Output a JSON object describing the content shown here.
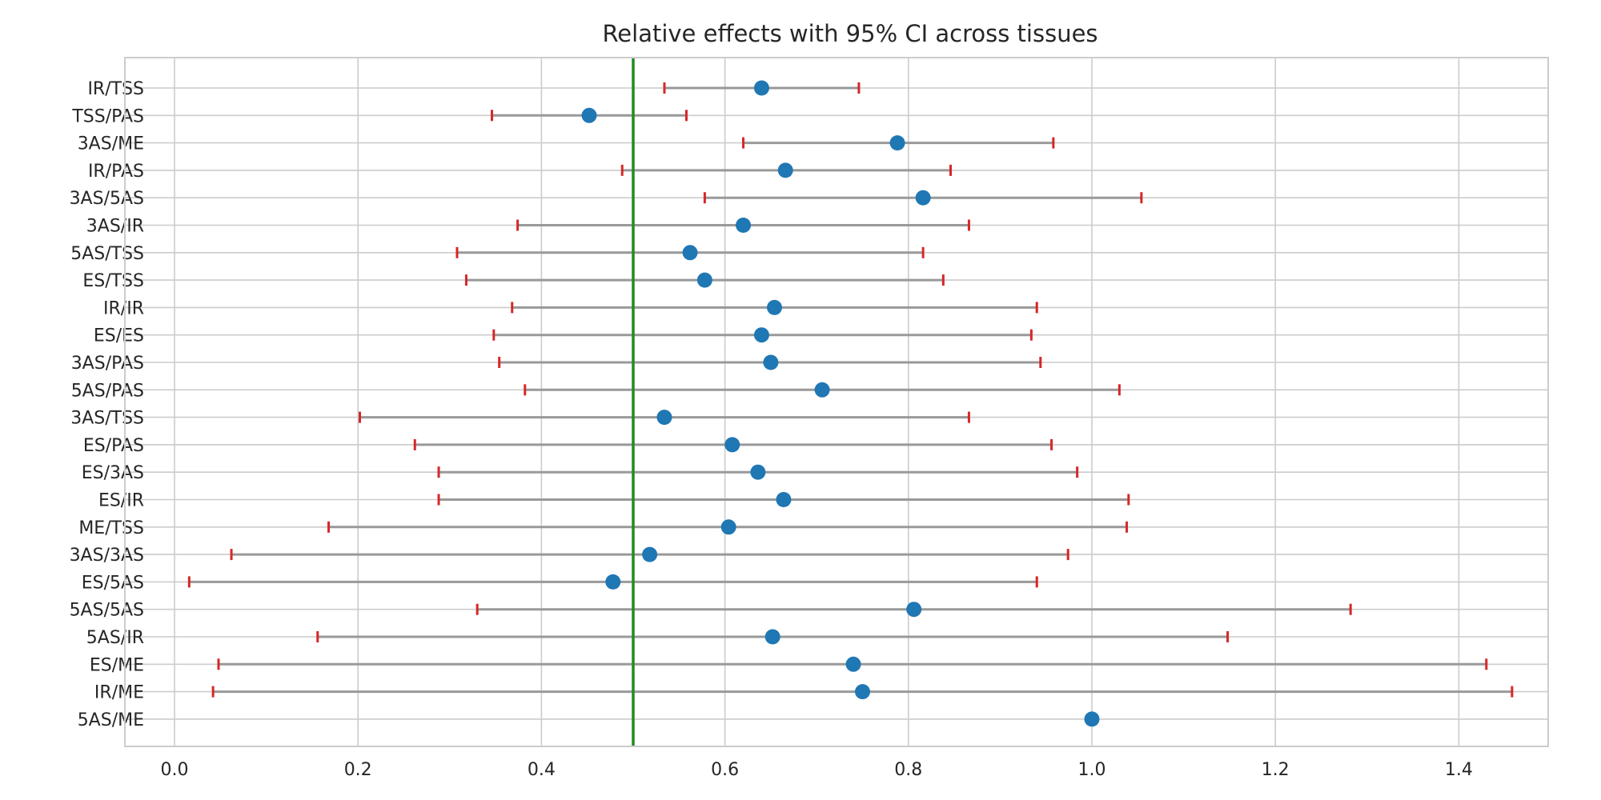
{
  "chart_data": {
    "type": "scatter",
    "title": "Relative effects with 95% CI across tissues",
    "xlabel": "",
    "ylabel": "",
    "xlim": [
      -0.055,
      1.535
    ],
    "xticks": [
      "0.0",
      "0.2",
      "0.4",
      "0.6",
      "0.8",
      "1.0",
      "1.2",
      "1.4"
    ],
    "reference_line": 0.5,
    "grid": true,
    "colors": {
      "point": "#1f77b4",
      "ci_line": "#999999",
      "ci_cap": "#d62728",
      "reference_line": "#228b22",
      "grid": "#cccccc",
      "frame": "#cccccc"
    },
    "categories": [
      "IR/TSS",
      "TSS/PAS",
      "3AS/ME",
      "IR/PAS",
      "3AS/5AS",
      "3AS/IR",
      "5AS/TSS",
      "ES/TSS",
      "IR/IR",
      "ES/ES",
      "3AS/PAS",
      "5AS/PAS",
      "3AS/TSS",
      "ES/PAS",
      "ES/3AS",
      "ES/IR",
      "ME/TSS",
      "3AS/3AS",
      "ES/5AS",
      "5AS/5AS",
      "5AS/IR",
      "ES/ME",
      "IR/ME",
      "5AS/ME"
    ],
    "estimate": [
      0.64,
      0.452,
      0.788,
      0.666,
      0.816,
      0.62,
      0.562,
      0.578,
      0.654,
      0.64,
      0.65,
      0.706,
      0.534,
      0.608,
      0.636,
      0.664,
      0.604,
      0.518,
      0.478,
      0.806,
      0.652,
      0.74,
      0.75,
      1.0
    ],
    "ci_low": [
      0.534,
      0.346,
      0.62,
      0.488,
      0.578,
      0.374,
      0.308,
      0.318,
      0.368,
      0.348,
      0.354,
      0.382,
      0.202,
      0.262,
      0.288,
      0.288,
      0.168,
      0.062,
      0.016,
      0.33,
      0.156,
      0.048,
      0.042,
      null
    ],
    "ci_high": [
      0.746,
      0.558,
      0.958,
      0.846,
      1.054,
      0.866,
      0.816,
      0.838,
      0.94,
      0.934,
      0.944,
      1.03,
      0.866,
      0.956,
      0.984,
      1.04,
      1.038,
      0.974,
      0.94,
      1.282,
      1.148,
      1.43,
      1.458,
      null
    ]
  }
}
